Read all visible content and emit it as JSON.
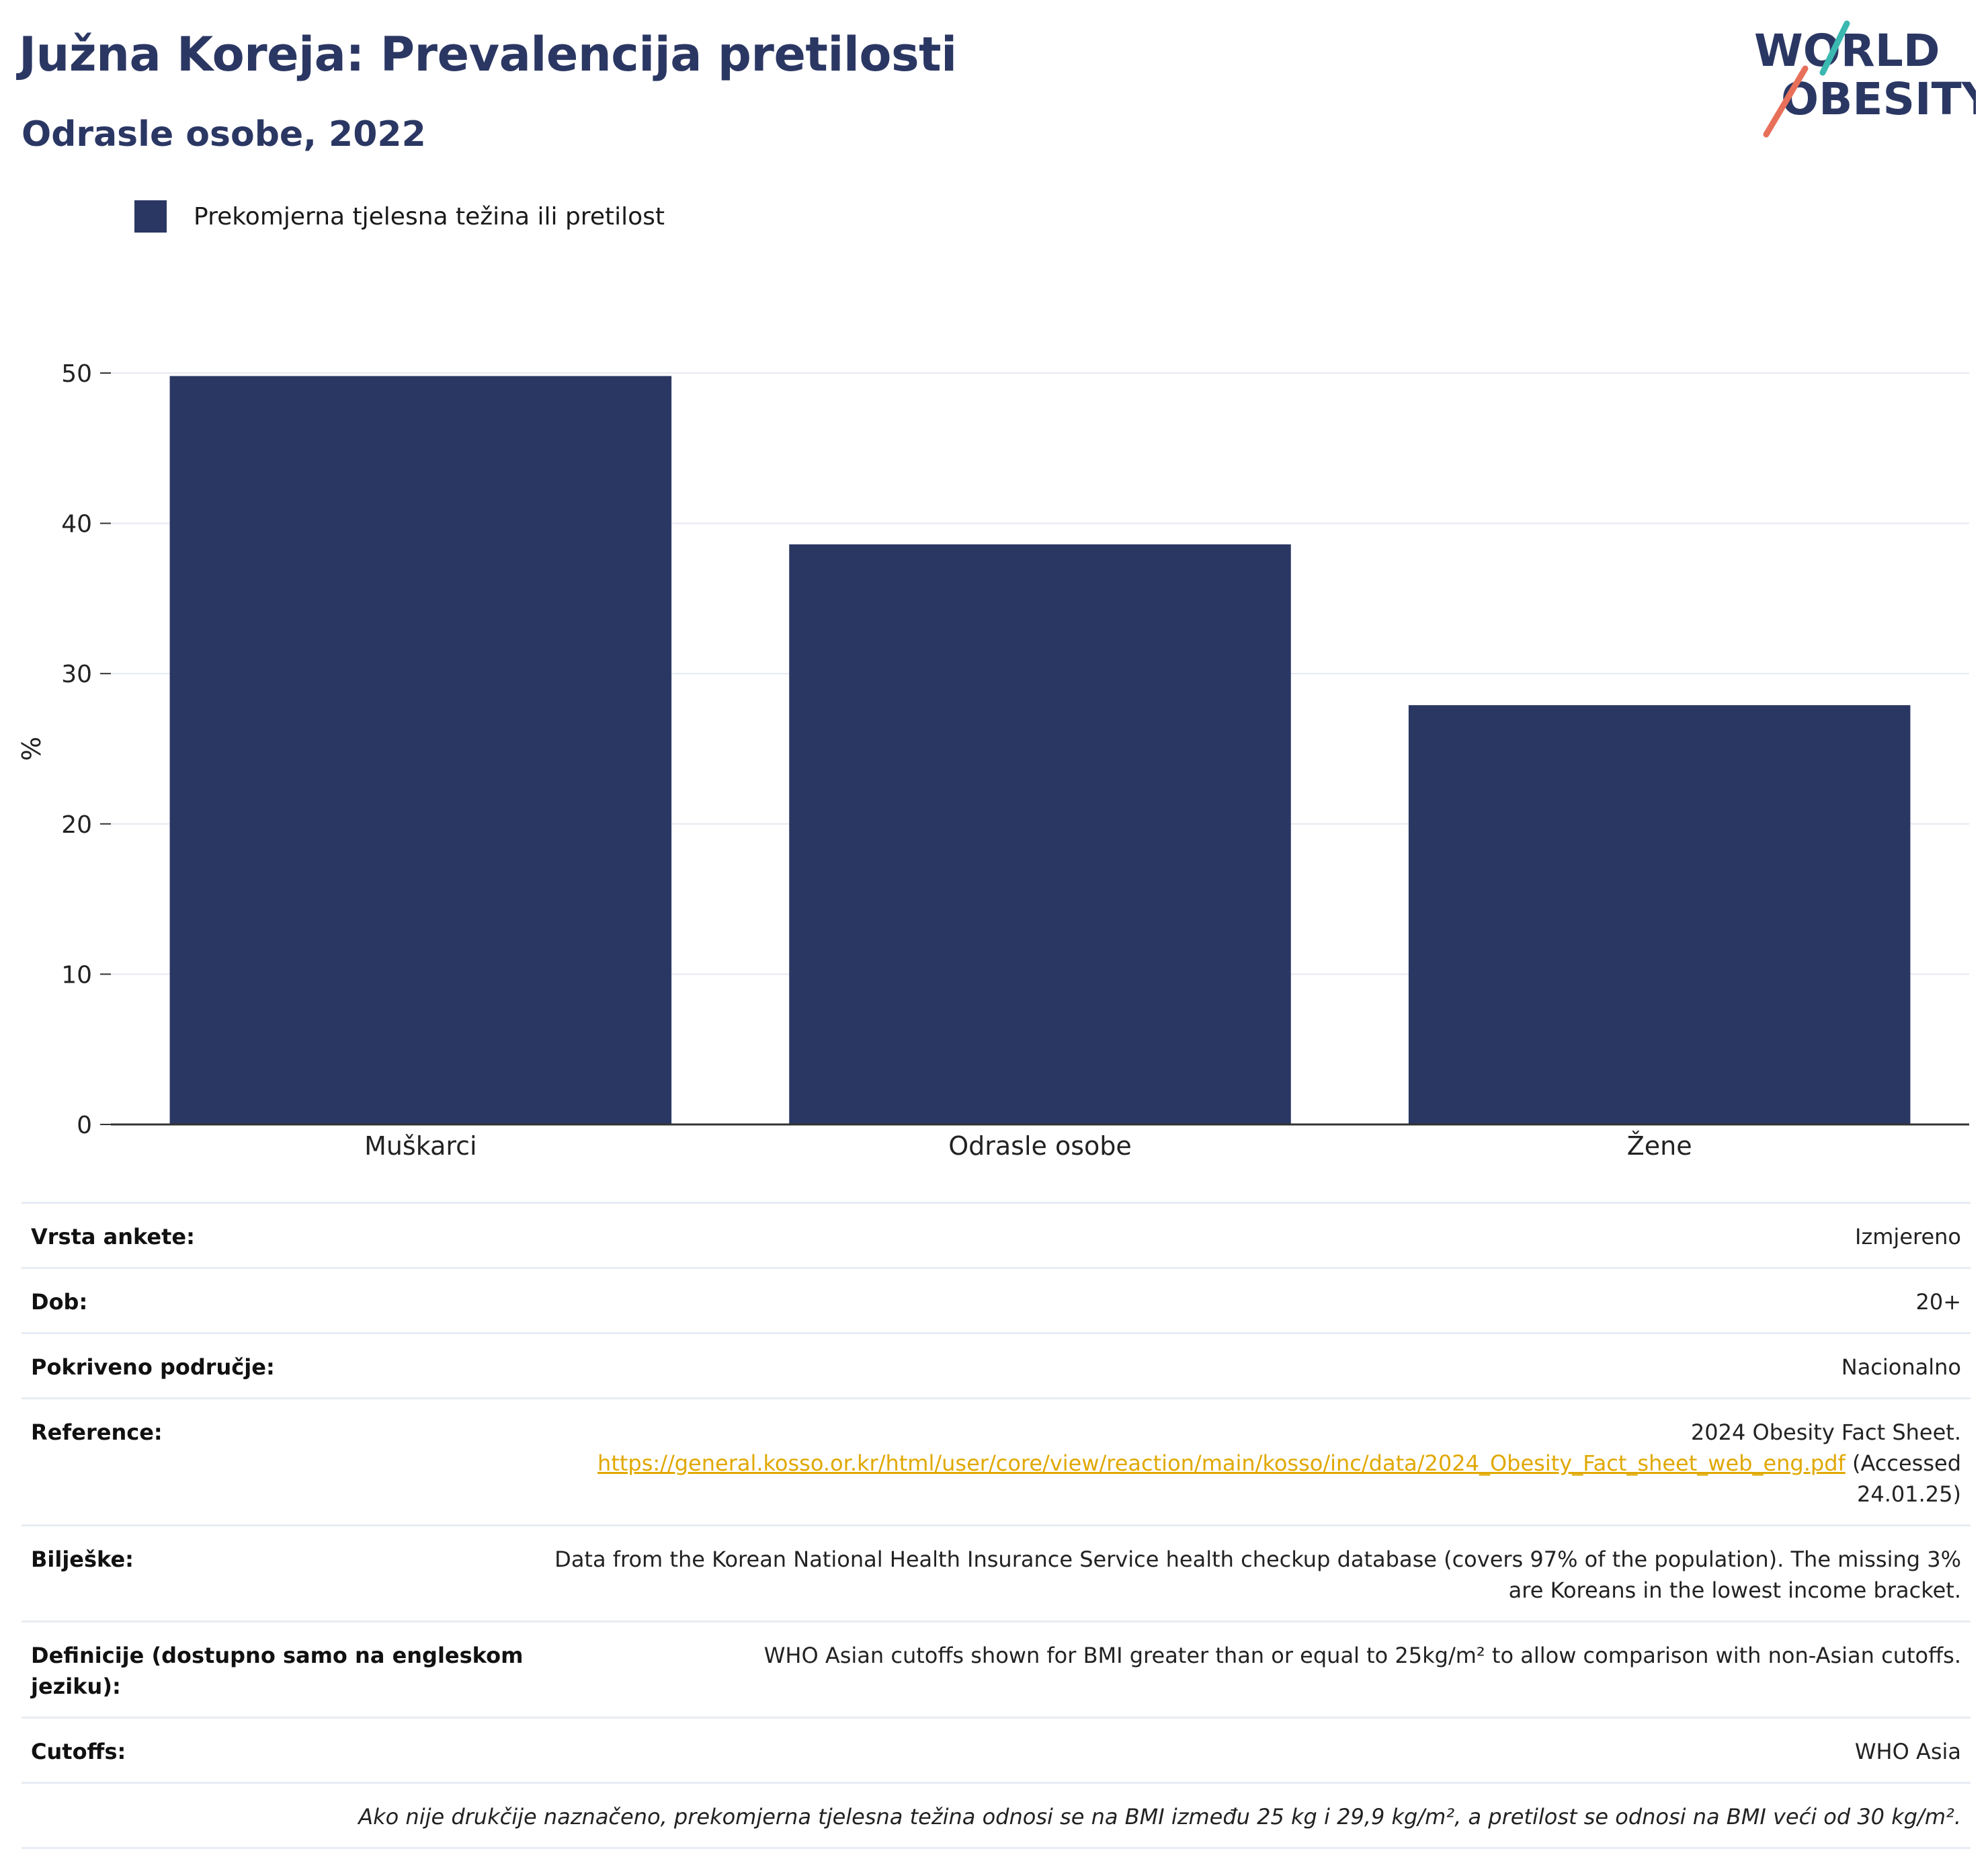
{
  "header": {
    "title": "Južna Koreja: Prevalencija pretilosti",
    "subtitle": "Odrasle osobe, 2022"
  },
  "logo": {
    "line1": "WORLD",
    "line2": "OBESITY",
    "colors": {
      "text": "#2b3763",
      "accent_teal": "#3bb8b0",
      "accent_coral": "#e8705a"
    }
  },
  "chart_data": {
    "type": "bar",
    "title": "Južna Koreja: Prevalencija pretilosti",
    "subtitle": "Odrasle osobe, 2022",
    "categories": [
      "Muškarci",
      "Odrasle osobe",
      "Žene"
    ],
    "series": [
      {
        "name": "Prekomjerna tjelesna težina ili pretilost",
        "values": [
          49.8,
          38.6,
          27.9
        ],
        "color": "#2b3763"
      }
    ],
    "ylabel": "%",
    "xlabel": "",
    "ylim": [
      0,
      50
    ],
    "yticks": [
      0,
      10,
      20,
      30,
      40,
      50
    ],
    "grid": true,
    "legend": "top-left"
  },
  "info": {
    "rows": [
      {
        "label": "Vrsta ankete:",
        "value": "Izmjereno"
      },
      {
        "label": "Dob:",
        "value": "20+"
      },
      {
        "label": "Pokriveno područje:",
        "value": "Nacionalno"
      },
      {
        "label": "Reference:",
        "value_prefix": "2024 Obesity Fact Sheet.",
        "link": "https://general.kosso.or.kr/html/user/core/view/reaction/main/kosso/inc/data/2024_Obesity_Fact_sheet_web_eng.pdf",
        "value_suffix": "(Accessed 24.01.25)"
      },
      {
        "label": "Bilješke:",
        "value": "Data from the Korean National Health Insurance Service health checkup database (covers 97% of the population). The missing 3% are Koreans in the lowest income bracket."
      },
      {
        "label": "Definicije (dostupno samo na engleskom jeziku):",
        "value": "WHO Asian cutoffs shown for BMI greater than or equal to 25kg/m² to allow comparison with non-Asian cutoffs."
      },
      {
        "label": "Cutoffs:",
        "value": "WHO Asia"
      }
    ],
    "footnote": "Ako nije drukčije naznačeno, prekomjerna tjelesna težina odnosi se na BMI između 25 kg i 29,9 kg/m², a pretilost se odnosi na BMI veći od 30 kg/m²."
  }
}
